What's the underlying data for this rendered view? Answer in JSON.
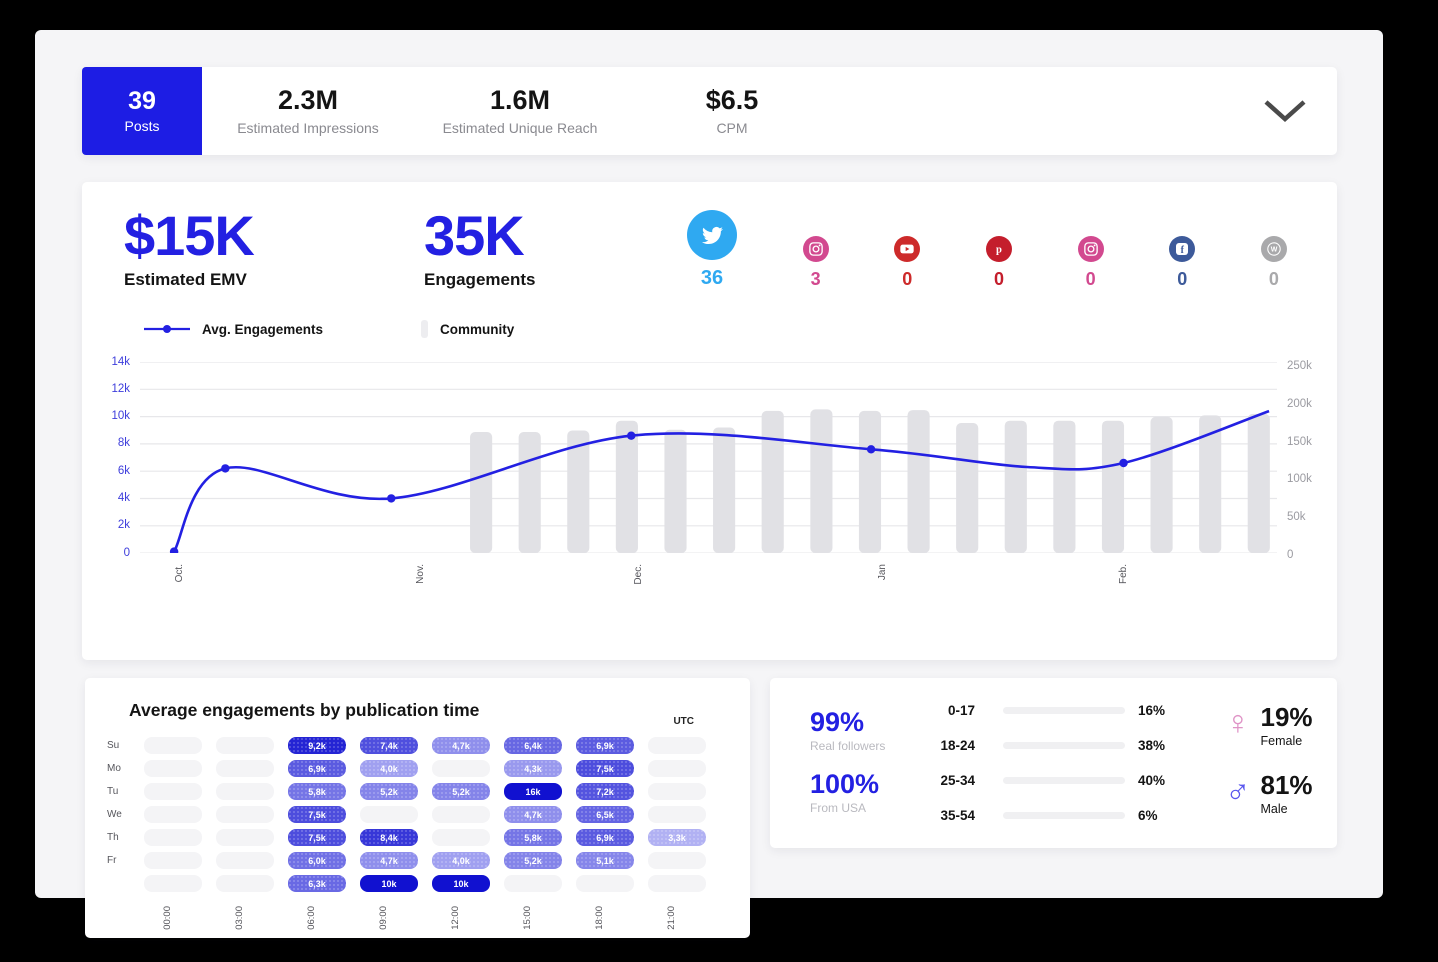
{
  "colors": {
    "accent": "#2320e2",
    "bar_fill": "#e1e1e5",
    "grid": "#e7e7ea",
    "heat_low": "#b8b8f5",
    "heat_high": "#1111d6"
  },
  "top_bar": {
    "posts_value": "39",
    "posts_label": "Posts",
    "stats": [
      {
        "value": "2.3M",
        "label": "Estimated Impressions"
      },
      {
        "value": "1.6M",
        "label": "Estimated Unique Reach"
      },
      {
        "value": "$6.5",
        "label": "CPM"
      }
    ]
  },
  "overview": {
    "emv_value": "$15K",
    "emv_label": "Estimated EMV",
    "eng_value": "35K",
    "eng_label": "Engagements",
    "networks": [
      {
        "name": "twitter",
        "count": "36",
        "color": "#2fa9f1",
        "featured": true
      },
      {
        "name": "instagram",
        "count": "3",
        "color": "#d2498f"
      },
      {
        "name": "youtube",
        "count": "0",
        "color": "#cd2a2a"
      },
      {
        "name": "pinterest",
        "count": "0",
        "color": "#c41e2c"
      },
      {
        "name": "instagram-alt",
        "count": "0",
        "color": "#d2498f"
      },
      {
        "name": "facebook",
        "count": "0",
        "color": "#3d5a9a"
      },
      {
        "name": "wordpress",
        "count": "0",
        "color": "#a9a9ab"
      }
    ]
  },
  "chart": {
    "legend": [
      {
        "label": "Avg. Engagements",
        "type": "line"
      },
      {
        "label": "Community",
        "type": "bar"
      }
    ],
    "left_ticks": [
      "14k",
      "12k",
      "10k",
      "8k",
      "6k",
      "4k",
      "2k",
      "0"
    ],
    "right_ticks": [
      "250k",
      "200k",
      "150k",
      "100k",
      "50k",
      "0"
    ]
  },
  "chart_data": {
    "type": "line+bar",
    "x_axis_months": [
      {
        "label": "Oct.",
        "x": 0.03
      },
      {
        "label": "Nov.",
        "x": 0.242
      },
      {
        "label": "Dec.",
        "x": 0.434
      },
      {
        "label": "Jan",
        "x": 0.648
      },
      {
        "label": "Feb.",
        "x": 0.86
      }
    ],
    "left_axis": {
      "series": "Avg. Engagements",
      "range_k": [
        0,
        14
      ]
    },
    "right_axis": {
      "series": "Community",
      "range_k": [
        0,
        250
      ]
    },
    "line_points": [
      {
        "x": 0.03,
        "y_k": 0.1,
        "marker": true
      },
      {
        "x": 0.075,
        "y_k": 6.2,
        "marker": true
      },
      {
        "x": 0.221,
        "y_k": 4.0,
        "marker": true
      },
      {
        "x": 0.432,
        "y_k": 8.6,
        "marker": true
      },
      {
        "x": 0.643,
        "y_k": 7.6,
        "marker": true
      },
      {
        "x": 0.78,
        "y_k": 6.3,
        "marker": false
      },
      {
        "x": 0.865,
        "y_k": 6.6,
        "marker": true
      },
      {
        "x": 0.993,
        "y_k": 10.4,
        "marker": false
      }
    ],
    "bars": {
      "start_x": 0.3,
      "pitch_x": 0.04275,
      "values_k": [
        160,
        160,
        162,
        175,
        163,
        166,
        188,
        190,
        188,
        189,
        172,
        175,
        175,
        175,
        180,
        182,
        184
      ]
    }
  },
  "heatmap": {
    "title": "Average engagements by publication time",
    "timezone": "UTC",
    "days": [
      "Su",
      "Mo",
      "Tu",
      "We",
      "Th",
      "Fr",
      ""
    ],
    "times": [
      "00:00",
      "03:00",
      "06:00",
      "09:00",
      "12:00",
      "15:00",
      "18:00",
      "21:00"
    ],
    "rows": [
      [
        null,
        null,
        "9,2k",
        "7,4k",
        "4,7k",
        "6,4k",
        "6,9k",
        null
      ],
      [
        null,
        null,
        "6,9k",
        "4,0k",
        null,
        "4,3k",
        "7,5k",
        null
      ],
      [
        null,
        null,
        "5,8k",
        "5,2k",
        "5,2k",
        "16k",
        "7,2k",
        null
      ],
      [
        null,
        null,
        "7,5k",
        null,
        null,
        "4,7k",
        "6,5k",
        null
      ],
      [
        null,
        null,
        "7,5k",
        "8,4k",
        null,
        "5,8k",
        "6,9k",
        "3,3k"
      ],
      [
        null,
        null,
        "6,0k",
        "4,7k",
        "4,0k",
        "5,2k",
        "5,1k",
        null
      ],
      [
        null,
        null,
        "6,3k",
        "10k",
        "10k",
        null,
        null,
        null
      ]
    ]
  },
  "audience": {
    "real_value": "99%",
    "real_label": "Real followers",
    "usa_value": "100%",
    "usa_label": "From USA",
    "ages": [
      {
        "band": "0-17",
        "pct": "16%",
        "value": 16
      },
      {
        "band": "18-24",
        "pct": "38%",
        "value": 38
      },
      {
        "band": "25-34",
        "pct": "40%",
        "value": 40
      },
      {
        "band": "35-54",
        "pct": "6%",
        "value": 6
      }
    ],
    "genders": [
      {
        "symbol": "♀",
        "pct": "19%",
        "label": "Female",
        "color": "#df93c6"
      },
      {
        "symbol": "♂",
        "pct": "81%",
        "label": "Male",
        "color": "#5a57ee"
      }
    ]
  }
}
